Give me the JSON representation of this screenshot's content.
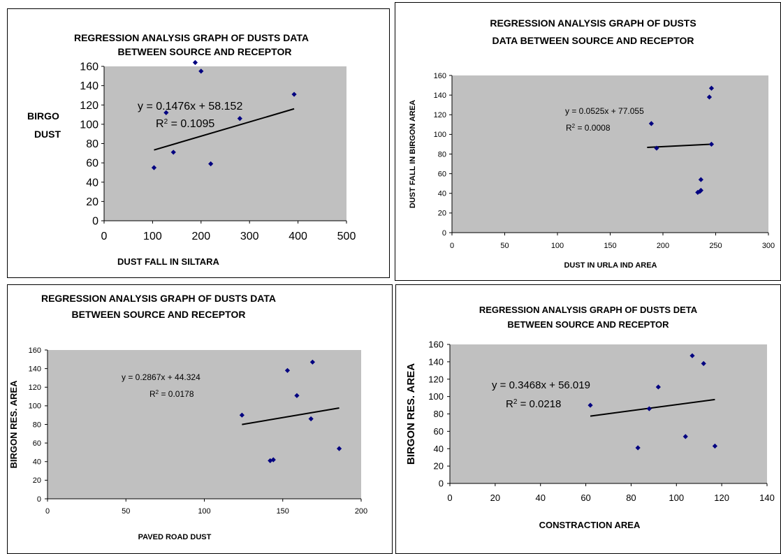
{
  "chart_data": [
    {
      "type": "scatter",
      "title": [
        "REGRESSION ANALYSIS GRAPH OF DUSTS DATA",
        "BETWEEN SOURCE AND RECEPTOR"
      ],
      "xlabel": "DUST FALL IN SILTARA",
      "ylabel": [
        "BIRGO",
        "DUST"
      ],
      "xlim": [
        0,
        500
      ],
      "ylim": [
        0,
        160
      ],
      "xticks": [
        0,
        100,
        200,
        300,
        400,
        500
      ],
      "yticks": [
        0,
        20,
        40,
        60,
        80,
        100,
        120,
        140,
        160
      ],
      "grid": false,
      "points": [
        [
          103,
          55
        ],
        [
          128,
          112
        ],
        [
          143,
          71
        ],
        [
          188,
          164
        ],
        [
          200,
          155
        ],
        [
          220,
          59
        ],
        [
          280,
          106
        ],
        [
          392,
          131
        ]
      ],
      "trendline": {
        "x": [
          103,
          392
        ],
        "slope": 0.1476,
        "intercept": 58.152
      },
      "equation": "y = 0.1476x + 58.152",
      "r2_value": " = 0.1095",
      "marker_color": "#000080",
      "plot_bg": "#c0c0c0"
    },
    {
      "type": "scatter",
      "title": [
        "REGRESSION ANALYSIS GRAPH OF DUSTS",
        "DATA BETWEEN SOURCE AND RECEPTOR"
      ],
      "xlabel": "DUST IN URLA IND AREA",
      "ylabel": "DUST FALL IN BIRGON AREA",
      "xlim": [
        0,
        300
      ],
      "ylim": [
        0,
        160
      ],
      "xticks": [
        0,
        50,
        100,
        150,
        200,
        250,
        300
      ],
      "yticks": [
        0,
        20,
        40,
        60,
        80,
        100,
        120,
        140,
        160
      ],
      "grid": false,
      "points": [
        [
          189,
          111
        ],
        [
          194,
          86
        ],
        [
          233,
          41
        ],
        [
          235,
          42
        ],
        [
          236,
          43
        ],
        [
          236,
          54
        ],
        [
          244,
          138
        ],
        [
          246,
          147
        ],
        [
          246,
          90
        ]
      ],
      "trendline": {
        "x": [
          185,
          246
        ],
        "slope": 0.0525,
        "intercept": 77.055
      },
      "equation": "y = 0.0525x + 77.055",
      "r2_value": " = 0.0008",
      "marker_color": "#000080",
      "plot_bg": "#c0c0c0"
    },
    {
      "type": "scatter",
      "title": [
        "REGRESSION ANALYSIS GRAPH OF DUSTS DATA",
        "BETWEEN SOURCE AND RECEPTOR"
      ],
      "xlabel": "PAVED ROAD DUST",
      "ylabel": "BIRGON RES. AREA",
      "xlim": [
        0,
        200
      ],
      "ylim": [
        0,
        160
      ],
      "xticks": [
        0,
        50,
        100,
        150,
        200
      ],
      "yticks": [
        0,
        20,
        40,
        60,
        80,
        100,
        120,
        140,
        160
      ],
      "grid": false,
      "points": [
        [
          124,
          90
        ],
        [
          142,
          41
        ],
        [
          144,
          42
        ],
        [
          153,
          138
        ],
        [
          159,
          111
        ],
        [
          168,
          86
        ],
        [
          169,
          147
        ],
        [
          186,
          54
        ]
      ],
      "trendline": {
        "x": [
          124,
          186
        ],
        "slope": 0.2867,
        "intercept": 44.324
      },
      "equation": "y = 0.2867x + 44.324",
      "r2_value": " = 0.0178",
      "marker_color": "#000080",
      "plot_bg": "#c0c0c0"
    },
    {
      "type": "scatter",
      "title": [
        "REGRESSION ANALYSIS GRAPH OF DUSTS DETA",
        "BETWEEN SOURCE AND RECEPTOR"
      ],
      "xlabel": "CONSTRACTION AREA",
      "ylabel": "BIRGON RES. AREA",
      "xlim": [
        0,
        140
      ],
      "ylim": [
        0,
        160
      ],
      "xticks": [
        0,
        20,
        40,
        60,
        80,
        100,
        120,
        140
      ],
      "yticks": [
        0,
        20,
        40,
        60,
        80,
        100,
        120,
        140,
        160
      ],
      "grid": false,
      "points": [
        [
          62,
          90
        ],
        [
          83,
          41
        ],
        [
          88,
          86
        ],
        [
          92,
          111
        ],
        [
          104,
          54
        ],
        [
          107,
          147
        ],
        [
          112,
          138
        ],
        [
          117,
          43
        ]
      ],
      "trendline": {
        "x": [
          62,
          117
        ],
        "slope": 0.3468,
        "intercept": 56.019
      },
      "equation": "y = 0.3468x + 56.019",
      "r2_value": " = 0.0218",
      "marker_color": "#000080",
      "plot_bg": "#c0c0c0"
    }
  ]
}
